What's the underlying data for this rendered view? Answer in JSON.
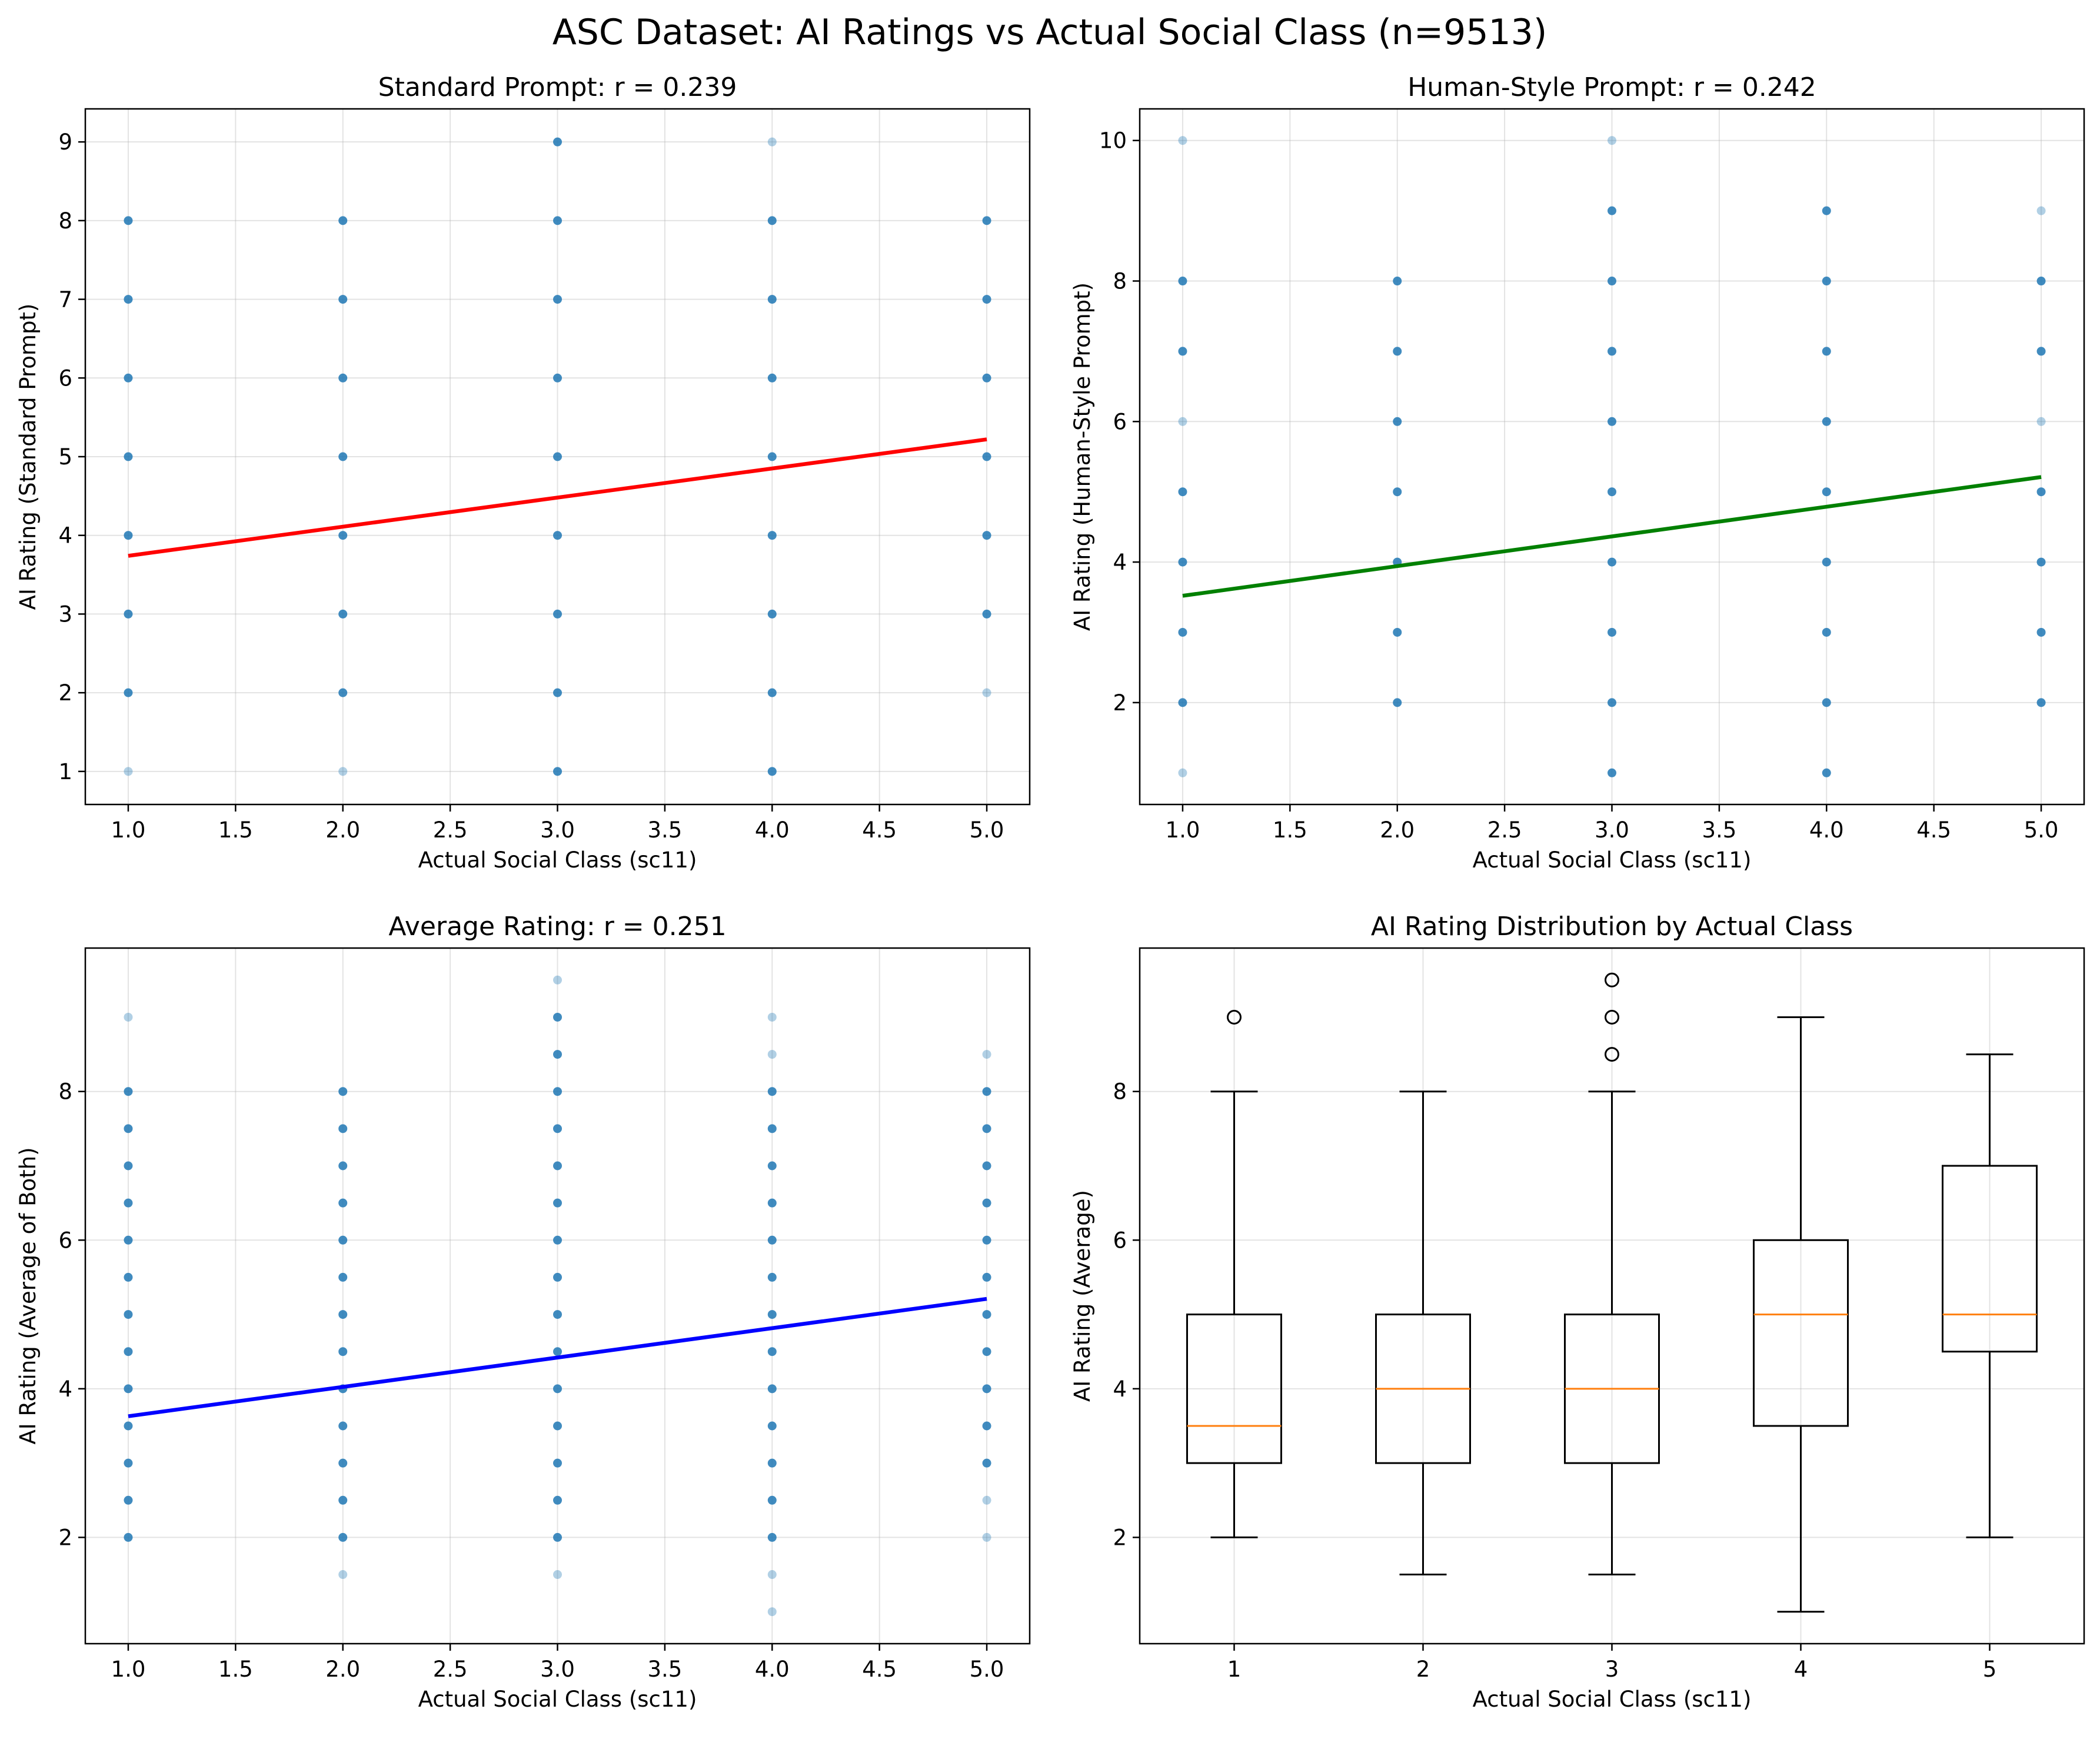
{
  "figure_title": "ASC Dataset: AI Ratings vs Actual Social Class (n=9513)",
  "colors": {
    "points": "#1f77b4",
    "grid": "#b0b0b0",
    "median": "#ff7f0e",
    "box": "#000000"
  },
  "chart_data": [
    {
      "type": "scatter",
      "title": "Standard Prompt: r = 0.239",
      "xlabel": "Actual Social Class (sc11)",
      "ylabel": "AI Rating (Standard Prompt)",
      "xlim": [
        0.8,
        5.2
      ],
      "ylim": [
        0.58,
        9.42
      ],
      "xticks": [
        "1.0",
        "1.5",
        "2.0",
        "2.5",
        "3.0",
        "3.5",
        "4.0",
        "4.5",
        "5.0"
      ],
      "yticks": [
        "1",
        "2",
        "3",
        "4",
        "5",
        "6",
        "7",
        "8",
        "9"
      ],
      "grid": true,
      "points": [
        {
          "x": 1,
          "ys": [
            2,
            3,
            4,
            5,
            6,
            7,
            8
          ]
        },
        {
          "x": 1,
          "ys": [
            1
          ],
          "faint": true
        },
        {
          "x": 2,
          "ys": [
            2,
            3,
            4,
            5,
            6,
            7,
            8
          ]
        },
        {
          "x": 2,
          "ys": [
            1
          ],
          "faint": true
        },
        {
          "x": 3,
          "ys": [
            1,
            2,
            3,
            4,
            5,
            6,
            7,
            8,
            9
          ]
        },
        {
          "x": 4,
          "ys": [
            1,
            2,
            3,
            4,
            5,
            6,
            7,
            8
          ]
        },
        {
          "x": 4,
          "ys": [
            9
          ],
          "faint": true
        },
        {
          "x": 5,
          "ys": [
            3,
            4,
            5,
            6,
            7,
            8
          ]
        },
        {
          "x": 5,
          "ys": [
            2
          ],
          "faint": true
        }
      ],
      "fit": {
        "color": "#ff0000",
        "x": [
          1,
          5
        ],
        "y": [
          3.74,
          5.22
        ]
      }
    },
    {
      "type": "scatter",
      "title": "Human-Style Prompt: r = 0.242",
      "xlabel": "Actual Social Class (sc11)",
      "ylabel": "AI Rating (Human-Style Prompt)",
      "xlim": [
        0.8,
        5.2
      ],
      "ylim": [
        0.55,
        10.45
      ],
      "xticks": [
        "1.0",
        "1.5",
        "2.0",
        "2.5",
        "3.0",
        "3.5",
        "4.0",
        "4.5",
        "5.0"
      ],
      "yticks": [
        "2",
        "4",
        "6",
        "8",
        "10"
      ],
      "grid": true,
      "points": [
        {
          "x": 1,
          "ys": [
            2,
            3,
            4,
            5,
            7,
            8
          ]
        },
        {
          "x": 1,
          "ys": [
            1,
            6,
            10
          ],
          "faint": true
        },
        {
          "x": 2,
          "ys": [
            2,
            3,
            4,
            5,
            6,
            7,
            8
          ]
        },
        {
          "x": 3,
          "ys": [
            1,
            2,
            3,
            4,
            5,
            6,
            7,
            8,
            9
          ]
        },
        {
          "x": 3,
          "ys": [
            10
          ],
          "faint": true
        },
        {
          "x": 4,
          "ys": [
            1,
            2,
            3,
            4,
            5,
            6,
            7,
            8,
            9
          ]
        },
        {
          "x": 5,
          "ys": [
            2,
            3,
            4,
            5,
            7,
            8
          ]
        },
        {
          "x": 5,
          "ys": [
            6,
            9
          ],
          "faint": true
        }
      ],
      "fit": {
        "color": "#008000",
        "x": [
          1,
          5
        ],
        "y": [
          3.52,
          5.21
        ]
      }
    },
    {
      "type": "scatter",
      "title": "Average Rating: r = 0.251",
      "xlabel": "Actual Social Class (sc11)",
      "ylabel": "AI Rating (Average of Both)",
      "xlim": [
        0.8,
        5.2
      ],
      "ylim": [
        0.57,
        9.93
      ],
      "xticks": [
        "1.0",
        "1.5",
        "2.0",
        "2.5",
        "3.0",
        "3.5",
        "4.0",
        "4.5",
        "5.0"
      ],
      "yticks": [
        "2",
        "4",
        "6",
        "8"
      ],
      "grid": true,
      "points": [
        {
          "x": 1,
          "ys": [
            2,
            2.5,
            3,
            3.5,
            4,
            4.5,
            5,
            5.5,
            6,
            6.5,
            7,
            7.5,
            8
          ]
        },
        {
          "x": 1,
          "ys": [
            9
          ],
          "faint": true
        },
        {
          "x": 2,
          "ys": [
            2,
            2.5,
            3,
            3.5,
            4,
            4.5,
            5,
            5.5,
            6,
            6.5,
            7,
            7.5,
            8
          ]
        },
        {
          "x": 2,
          "ys": [
            1.5
          ],
          "faint": true
        },
        {
          "x": 3,
          "ys": [
            2,
            2.5,
            3,
            3.5,
            4,
            4.5,
            5,
            5.5,
            6,
            6.5,
            7,
            7.5,
            8,
            8.5,
            9
          ]
        },
        {
          "x": 3,
          "ys": [
            1.5,
            9.5
          ],
          "faint": true
        },
        {
          "x": 4,
          "ys": [
            2,
            2.5,
            3,
            3.5,
            4,
            4.5,
            5,
            5.5,
            6,
            6.5,
            7,
            7.5,
            8
          ]
        },
        {
          "x": 4,
          "ys": [
            1,
            1.5,
            8.5,
            9
          ],
          "faint": true
        },
        {
          "x": 5,
          "ys": [
            3,
            3.5,
            4,
            4.5,
            5,
            5.5,
            6,
            6.5,
            7,
            7.5,
            8
          ]
        },
        {
          "x": 5,
          "ys": [
            2,
            2.5,
            8.5
          ],
          "faint": true
        }
      ],
      "fit": {
        "color": "#0000ff",
        "x": [
          1,
          5
        ],
        "y": [
          3.63,
          5.21
        ]
      }
    },
    {
      "type": "box",
      "title": "AI Rating Distribution by Actual Class",
      "xlabel": "Actual Social Class (sc11)",
      "ylabel": "AI Rating (Average)",
      "categories": [
        "1",
        "2",
        "3",
        "4",
        "5"
      ],
      "xlim": [
        0.5,
        5.5
      ],
      "ylim": [
        0.57,
        9.93
      ],
      "yticks": [
        "2",
        "4",
        "6",
        "8"
      ],
      "grid": true,
      "boxes": [
        {
          "whisker_low": 2,
          "q1": 3,
          "median": 3.5,
          "q3": 5,
          "whisker_high": 8,
          "fliers": [
            9
          ]
        },
        {
          "whisker_low": 1.5,
          "q1": 3,
          "median": 4,
          "q3": 5,
          "whisker_high": 8,
          "fliers": []
        },
        {
          "whisker_low": 1.5,
          "q1": 3,
          "median": 4,
          "q3": 5,
          "whisker_high": 8,
          "fliers": [
            8.5,
            9,
            9.5
          ]
        },
        {
          "whisker_low": 1,
          "q1": 3.5,
          "median": 5,
          "q3": 6,
          "whisker_high": 9,
          "fliers": []
        },
        {
          "whisker_low": 2,
          "q1": 4.5,
          "median": 5,
          "q3": 7,
          "whisker_high": 8.5,
          "fliers": []
        }
      ]
    }
  ]
}
